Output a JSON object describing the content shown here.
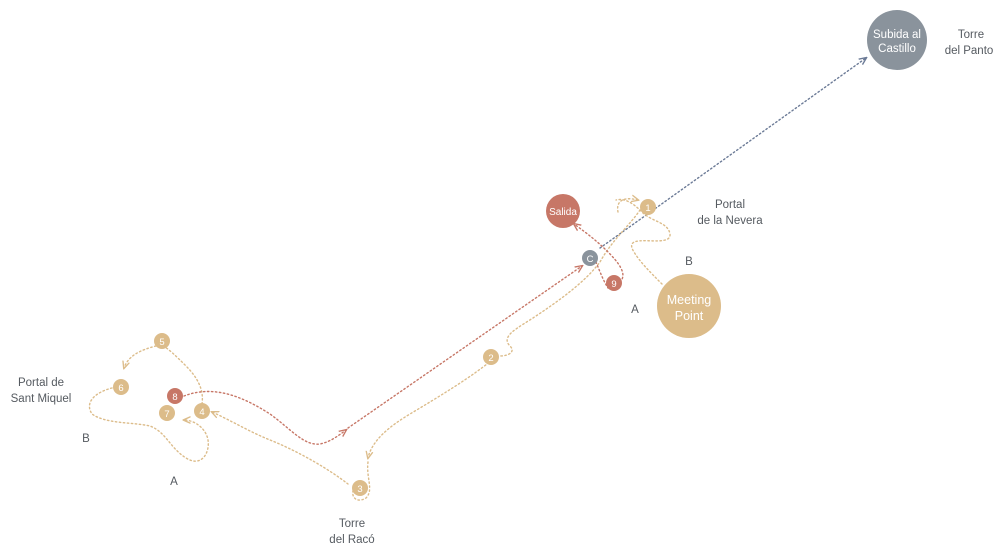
{
  "colors": {
    "gold": "#dcbc8a",
    "red": "#c77767",
    "slate": "#8a939c",
    "slate_route": "#6b7a96",
    "label": "#555a60",
    "background": "#ffffff"
  },
  "hubs": {
    "meeting_point": {
      "line1": "Meeting",
      "line2": "Point"
    },
    "salida": "Salida",
    "subida": {
      "line1": "Subida al",
      "line2": "Castillo"
    },
    "c_marker": "C"
  },
  "stops": [
    "1",
    "2",
    "3",
    "4",
    "5",
    "6",
    "7",
    "8",
    "9"
  ],
  "places": {
    "torre_panto": {
      "line1": "Torre",
      "line2": "del Panto"
    },
    "portal_nevera": {
      "line1": "Portal",
      "line2": "de la Nevera"
    },
    "portal_sant_miquel": {
      "line1": "Portal de",
      "line2": "Sant Miquel"
    },
    "torre_raco": {
      "line1": "Torre",
      "line2": "del Racó"
    }
  },
  "route_letters": {
    "nevera_b": "B",
    "nevera_a": "A",
    "miquel_b": "B",
    "miquel_a": "A"
  }
}
